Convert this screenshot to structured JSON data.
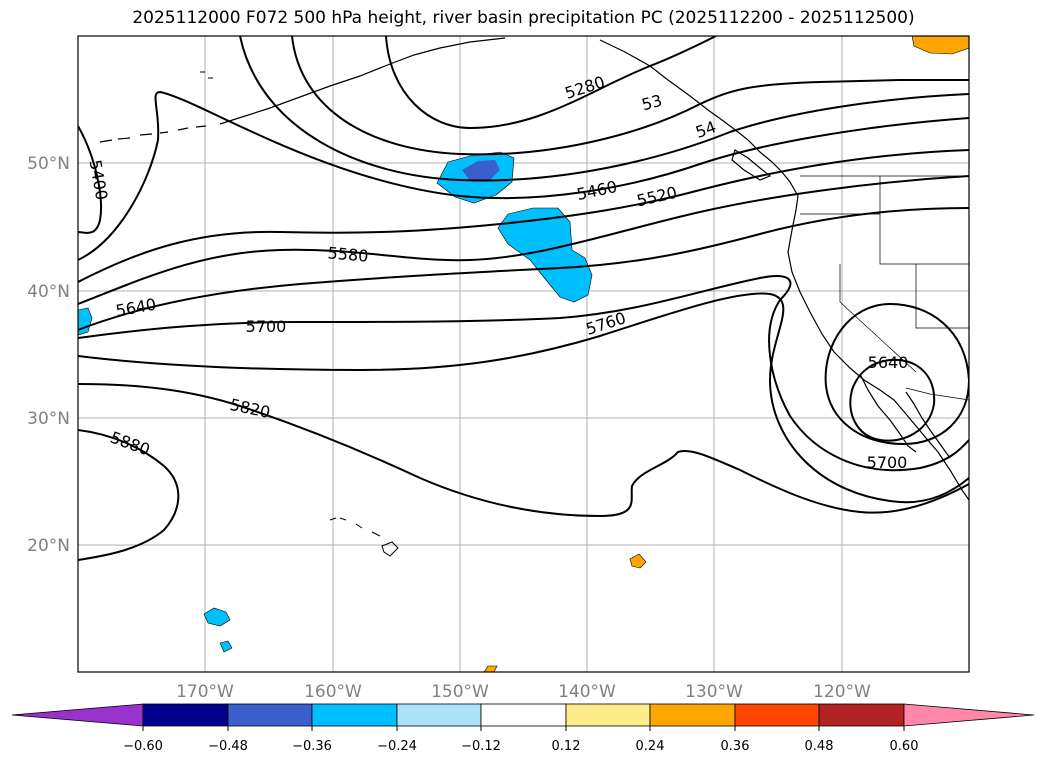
{
  "title": "2025112000 F072 500 hPa height, river basin precipitation PC (2025112200 - 2025112500)",
  "map": {
    "lat_labels": [
      "50°N",
      "40°N",
      "30°N",
      "20°N"
    ],
    "lon_labels": [
      "170°W",
      "160°W",
      "150°W",
      "140°W",
      "130°W",
      "120°W"
    ],
    "contour_labels": [
      "5280",
      "53",
      "54",
      "5400",
      "5460",
      "5520",
      "5580",
      "5640",
      "5700",
      "5760",
      "5820",
      "5880",
      "5640",
      "5700"
    ]
  },
  "colorbar": {
    "ticks": [
      "−0.60",
      "−0.48",
      "−0.36",
      "−0.24",
      "−0.12",
      "0.12",
      "0.24",
      "0.36",
      "0.48",
      "0.60"
    ],
    "colors": [
      "#9932CC",
      "#00008B",
      "#3A5FCD",
      "#00BFFF",
      "#ADE2FA",
      "#FFFFFF",
      "#FFEC8B",
      "#FFA500",
      "#FF4500",
      "#B22222",
      "#FF88AA"
    ]
  },
  "colors": {
    "grid": "#b0b0b0",
    "contour": "#000000",
    "precip_light_blue": "#00BFFF",
    "precip_blue": "#3A5FCD",
    "precip_orange": "#FFA500"
  }
}
